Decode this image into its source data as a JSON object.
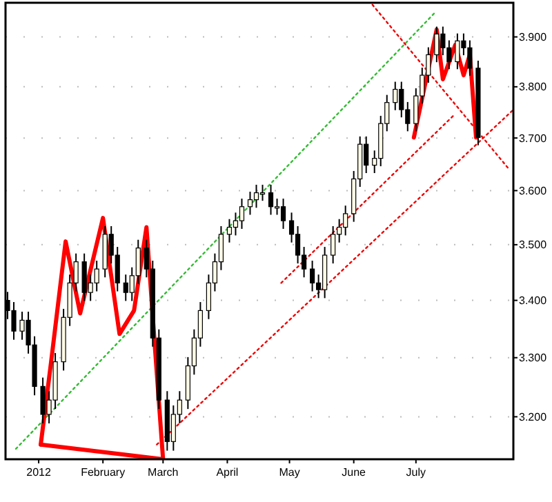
{
  "chart_data": {
    "type": "candlestick",
    "xlim": [
      "2011-12-16",
      "2012-08-17"
    ],
    "ylim": [
      3.13,
      3.97
    ],
    "log": "y",
    "grid": "y",
    "color": "#000000",
    "yticks": [
      {
        "value": 3.2,
        "label": "3.200"
      },
      {
        "value": 3.3,
        "label": "3.300"
      },
      {
        "value": 3.4,
        "label": "3.400"
      },
      {
        "value": 3.5,
        "label": "3.500"
      },
      {
        "value": 3.6,
        "label": "3.600"
      },
      {
        "value": 3.7,
        "label": "3.700"
      },
      {
        "value": 3.8,
        "label": "3.800"
      },
      {
        "value": 3.9,
        "label": "3.900"
      }
    ],
    "xticks": [
      {
        "value": "2012-01-01",
        "label": "2012"
      },
      {
        "value": "2012-02-01",
        "label": "February"
      },
      {
        "value": "2012-03-01",
        "label": "March"
      },
      {
        "value": "2012-04-01",
        "label": "April"
      },
      {
        "value": "2012-05-01",
        "label": "May"
      },
      {
        "value": "2012-06-01",
        "label": "June"
      },
      {
        "value": "2012-07-01",
        "label": "July"
      }
    ],
    "x": [
      "2011-12-17",
      "2011-12-20",
      "2011-12-24",
      "2011-12-27",
      "2011-12-30",
      "2012-01-03",
      "2012-01-06",
      "2012-01-09",
      "2012-01-13",
      "2012-01-16",
      "2012-01-19",
      "2012-01-23",
      "2012-01-26",
      "2012-01-29",
      "2012-02-02",
      "2012-02-05",
      "2012-02-08",
      "2012-02-12",
      "2012-02-15",
      "2012-02-18",
      "2012-02-22",
      "2012-02-25",
      "2012-02-28",
      "2012-03-03",
      "2012-03-06",
      "2012-03-09",
      "2012-03-13",
      "2012-03-16",
      "2012-03-19",
      "2012-03-23",
      "2012-03-26",
      "2012-03-29",
      "2012-04-02",
      "2012-04-05",
      "2012-04-08",
      "2012-04-12",
      "2012-04-15",
      "2012-04-18",
      "2012-04-22",
      "2012-04-25",
      "2012-04-28",
      "2012-05-02",
      "2012-05-05",
      "2012-05-08",
      "2012-05-12",
      "2012-05-15",
      "2012-05-18",
      "2012-05-22",
      "2012-05-25",
      "2012-05-28",
      "2012-06-01",
      "2012-06-04",
      "2012-06-07",
      "2012-06-11",
      "2012-06-14",
      "2012-06-17",
      "2012-06-21",
      "2012-06-24",
      "2012-06-27",
      "2012-07-01",
      "2012-07-04",
      "2012-07-07",
      "2012-07-11",
      "2012-07-14",
      "2012-07-17",
      "2012-07-21",
      "2012-07-24",
      "2012-07-27",
      "2012-07-31"
    ],
    "ohlc": [
      [
        3.4,
        3.415,
        3.367,
        3.382
      ],
      [
        3.382,
        3.397,
        3.331,
        3.346
      ],
      [
        3.346,
        3.38,
        3.331,
        3.365
      ],
      [
        3.365,
        3.38,
        3.307,
        3.322
      ],
      [
        3.322,
        3.337,
        3.236,
        3.251
      ],
      [
        3.251,
        3.266,
        3.189,
        3.204
      ],
      [
        3.204,
        3.243,
        3.189,
        3.228
      ],
      [
        3.228,
        3.308,
        3.213,
        3.293
      ],
      [
        3.293,
        3.385,
        3.278,
        3.37
      ],
      [
        3.37,
        3.446,
        3.355,
        3.431
      ],
      [
        3.431,
        3.484,
        3.416,
        3.469
      ],
      [
        3.469,
        3.484,
        3.399,
        3.414
      ],
      [
        3.414,
        3.446,
        3.399,
        3.431
      ],
      [
        3.431,
        3.471,
        3.416,
        3.456
      ],
      [
        3.456,
        3.534,
        3.441,
        3.519
      ],
      [
        3.519,
        3.534,
        3.466,
        3.481
      ],
      [
        3.481,
        3.496,
        3.416,
        3.431
      ],
      [
        3.431,
        3.446,
        3.399,
        3.414
      ],
      [
        3.414,
        3.459,
        3.399,
        3.444
      ],
      [
        3.444,
        3.509,
        3.429,
        3.494
      ],
      [
        3.494,
        3.509,
        3.441,
        3.456
      ],
      [
        3.456,
        3.471,
        3.319,
        3.334
      ],
      [
        3.334,
        3.349,
        3.213,
        3.228
      ],
      [
        3.228,
        3.243,
        3.144,
        3.159
      ],
      [
        3.159,
        3.219,
        3.144,
        3.204
      ],
      [
        3.204,
        3.243,
        3.189,
        3.228
      ],
      [
        3.228,
        3.301,
        3.213,
        3.286
      ],
      [
        3.286,
        3.349,
        3.271,
        3.334
      ],
      [
        3.334,
        3.397,
        3.319,
        3.382
      ],
      [
        3.382,
        3.446,
        3.367,
        3.431
      ],
      [
        3.431,
        3.484,
        3.416,
        3.469
      ],
      [
        3.469,
        3.534,
        3.454,
        3.519
      ],
      [
        3.519,
        3.547,
        3.504,
        3.532
      ],
      [
        3.532,
        3.559,
        3.517,
        3.544
      ],
      [
        3.544,
        3.585,
        3.529,
        3.57
      ],
      [
        3.57,
        3.598,
        3.555,
        3.583
      ],
      [
        3.583,
        3.611,
        3.568,
        3.596
      ],
      [
        3.596,
        3.611,
        3.581,
        3.596
      ],
      [
        3.596,
        3.611,
        3.555,
        3.57
      ],
      [
        3.57,
        3.585,
        3.555,
        3.57
      ],
      [
        3.57,
        3.585,
        3.529,
        3.544
      ],
      [
        3.544,
        3.559,
        3.504,
        3.519
      ],
      [
        3.519,
        3.534,
        3.466,
        3.481
      ],
      [
        3.481,
        3.496,
        3.441,
        3.456
      ],
      [
        3.456,
        3.471,
        3.416,
        3.431
      ],
      [
        3.431,
        3.446,
        3.404,
        3.419
      ],
      [
        3.419,
        3.496,
        3.404,
        3.481
      ],
      [
        3.481,
        3.534,
        3.466,
        3.519
      ],
      [
        3.519,
        3.547,
        3.504,
        3.532
      ],
      [
        3.532,
        3.572,
        3.517,
        3.557
      ],
      [
        3.557,
        3.637,
        3.542,
        3.622
      ],
      [
        3.622,
        3.703,
        3.607,
        3.688
      ],
      [
        3.688,
        3.703,
        3.633,
        3.648
      ],
      [
        3.648,
        3.676,
        3.633,
        3.661
      ],
      [
        3.661,
        3.743,
        3.646,
        3.728
      ],
      [
        3.728,
        3.784,
        3.713,
        3.769
      ],
      [
        3.769,
        3.81,
        3.754,
        3.795
      ],
      [
        3.795,
        3.81,
        3.74,
        3.755
      ],
      [
        3.755,
        3.77,
        3.713,
        3.728
      ],
      [
        3.728,
        3.797,
        3.713,
        3.782
      ],
      [
        3.782,
        3.838,
        3.767,
        3.823
      ],
      [
        3.823,
        3.879,
        3.808,
        3.864
      ],
      [
        3.864,
        3.921,
        3.849,
        3.906
      ],
      [
        3.906,
        3.921,
        3.863,
        3.878
      ],
      [
        3.878,
        3.893,
        3.835,
        3.85
      ],
      [
        3.85,
        3.907,
        3.835,
        3.892
      ],
      [
        3.892,
        3.907,
        3.863,
        3.878
      ],
      [
        3.878,
        3.893,
        3.822,
        3.837
      ],
      [
        3.837,
        3.852,
        3.686,
        3.701
      ]
    ],
    "series": [
      {
        "type": "line",
        "color": "#33bb33",
        "line_style": "dotted",
        "x": [
          "2011-12-21",
          "2012-07-10"
        ],
        "values": [
          3.147,
          3.949
        ]
      },
      {
        "type": "line",
        "color": "#ee0000",
        "line_style": "dotted",
        "x": [
          "2012-02-27",
          "2012-08-17"
        ],
        "values": [
          3.154,
          3.755
        ]
      },
      {
        "type": "line",
        "color": "#ee0000",
        "line_style": "dotted",
        "x": [
          "2012-04-27",
          "2012-07-20"
        ],
        "values": [
          3.431,
          3.747
        ]
      },
      {
        "type": "line",
        "color": "#ee0000",
        "line_style": "dotted",
        "x": [
          "2012-06-10",
          "2012-08-15"
        ],
        "values": [
          3.966,
          3.64
        ]
      },
      {
        "type": "line",
        "color": "#ff0000",
        "line_style": "solid",
        "x": [
          "2012-01-02",
          "2012-01-07",
          "2012-01-14",
          "2012-01-21",
          "2012-02-01",
          "2012-02-09",
          "2012-02-16",
          "2012-02-22",
          "2012-02-26",
          "2012-03-01"
        ],
        "values": [
          3.154,
          3.293,
          3.506,
          3.377,
          3.549,
          3.341,
          3.382,
          3.532,
          3.322,
          3.13
        ]
      },
      {
        "type": "line",
        "color": "#ff0000",
        "line_style": "solid",
        "x": [
          "2012-01-02",
          "2012-03-01"
        ],
        "values": [
          3.154,
          3.13
        ]
      },
      {
        "type": "line",
        "color": "#ff0000",
        "line_style": "solid",
        "x": [
          "2012-06-30",
          "2012-07-11",
          "2012-07-14",
          "2012-07-20",
          "2012-07-24",
          "2012-07-27",
          "2012-07-30"
        ],
        "values": [
          3.701,
          3.915,
          3.815,
          3.884,
          3.823,
          3.864,
          3.701
        ]
      }
    ]
  }
}
